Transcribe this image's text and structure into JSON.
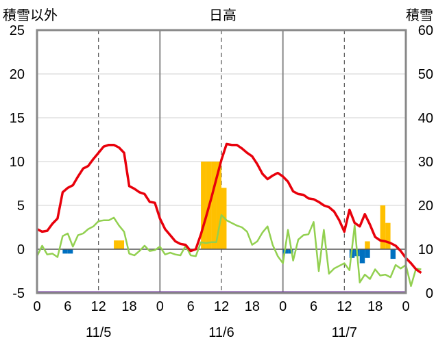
{
  "titles": {
    "left": "積雪以外",
    "center": "日高",
    "right": "積雪"
  },
  "chart_data": {
    "type": "line",
    "y_left": {
      "min": -5,
      "max": 25,
      "ticks": [
        -5,
        0,
        5,
        10,
        15,
        20,
        25
      ]
    },
    "y_right": {
      "min": 0,
      "max": 60,
      "ticks": [
        0,
        10,
        20,
        30,
        40,
        50,
        60
      ]
    },
    "x": {
      "min": 0,
      "max": 72,
      "tick_positions": [
        0,
        6,
        12,
        18,
        24,
        30,
        36,
        42,
        48,
        54,
        60,
        66,
        72
      ],
      "tick_labels": [
        "0",
        "6",
        "12",
        "18",
        "0",
        "6",
        "12",
        "18",
        "0",
        "6",
        "12",
        "18",
        "0"
      ],
      "day_dividers": [
        24,
        48
      ],
      "dashed_guides": [
        12,
        36,
        60
      ],
      "dates": [
        {
          "label": "11/5",
          "at": 12
        },
        {
          "label": "11/6",
          "at": 36
        },
        {
          "label": "11/7",
          "at": 60
        }
      ]
    },
    "temperature": {
      "color": "#e8000b",
      "points": [
        [
          0,
          2.3
        ],
        [
          1,
          2.0
        ],
        [
          2,
          2.1
        ],
        [
          3,
          2.9
        ],
        [
          4,
          3.5
        ],
        [
          5,
          6.5
        ],
        [
          6,
          7.0
        ],
        [
          7,
          7.3
        ],
        [
          8,
          8.3
        ],
        [
          9,
          9.2
        ],
        [
          10,
          9.5
        ],
        [
          11,
          10.3
        ],
        [
          12,
          11.0
        ],
        [
          13,
          11.7
        ],
        [
          14,
          11.9
        ],
        [
          15,
          11.9
        ],
        [
          16,
          11.6
        ],
        [
          17,
          11.0
        ],
        [
          18,
          7.2
        ],
        [
          19,
          6.9
        ],
        [
          20,
          6.5
        ],
        [
          21,
          6.3
        ],
        [
          22,
          5.4
        ],
        [
          23,
          5.3
        ],
        [
          24,
          3.5
        ],
        [
          25,
          2.3
        ],
        [
          26,
          1.6
        ],
        [
          27,
          0.9
        ],
        [
          28,
          0.6
        ],
        [
          29,
          0.5
        ],
        [
          30,
          -0.2
        ],
        [
          31,
          0.0
        ],
        [
          32,
          1.7
        ],
        [
          33,
          3.7
        ],
        [
          34,
          5.8
        ],
        [
          35,
          8.0
        ],
        [
          36,
          10.2
        ],
        [
          37,
          12.0
        ],
        [
          38,
          11.9
        ],
        [
          39,
          11.9
        ],
        [
          40,
          11.5
        ],
        [
          41,
          11.0
        ],
        [
          42,
          10.6
        ],
        [
          43,
          9.7
        ],
        [
          44,
          8.6
        ],
        [
          45,
          8.0
        ],
        [
          46,
          8.4
        ],
        [
          47,
          8.7
        ],
        [
          48,
          8.3
        ],
        [
          49,
          7.7
        ],
        [
          50,
          6.6
        ],
        [
          51,
          6.3
        ],
        [
          52,
          6.2
        ],
        [
          53,
          5.8
        ],
        [
          54,
          5.7
        ],
        [
          55,
          5.4
        ],
        [
          56,
          5.0
        ],
        [
          57,
          4.8
        ],
        [
          58,
          4.3
        ],
        [
          59,
          3.3
        ],
        [
          60,
          2.0
        ],
        [
          61,
          4.5
        ],
        [
          62,
          3.0
        ],
        [
          63,
          2.6
        ],
        [
          64,
          4.0
        ],
        [
          65,
          2.8
        ],
        [
          66,
          1.4
        ],
        [
          67,
          1.0
        ],
        [
          68,
          0.9
        ],
        [
          69,
          0.7
        ],
        [
          70,
          0.4
        ],
        [
          71,
          -0.2
        ],
        [
          72,
          -1.0
        ],
        [
          73,
          -1.6
        ],
        [
          74,
          -2.3
        ],
        [
          75,
          -2.7
        ]
      ]
    },
    "green_series": {
      "color": "#92d050",
      "points": [
        [
          0,
          -0.8
        ],
        [
          1,
          0.4
        ],
        [
          2,
          -0.6
        ],
        [
          3,
          -0.5
        ],
        [
          4,
          -0.9
        ],
        [
          5,
          1.5
        ],
        [
          6,
          1.8
        ],
        [
          7,
          0.3
        ],
        [
          8,
          1.6
        ],
        [
          9,
          1.8
        ],
        [
          10,
          2.3
        ],
        [
          11,
          2.6
        ],
        [
          12,
          3.2
        ],
        [
          13,
          3.3
        ],
        [
          14,
          3.3
        ],
        [
          15,
          3.6
        ],
        [
          16,
          2.7
        ],
        [
          17,
          2.0
        ],
        [
          18,
          -0.5
        ],
        [
          19,
          -0.7
        ],
        [
          20,
          -0.2
        ],
        [
          21,
          0.4
        ],
        [
          22,
          -0.2
        ],
        [
          23,
          -0.1
        ],
        [
          24,
          0.3
        ],
        [
          25,
          -0.6
        ],
        [
          26,
          -0.4
        ],
        [
          27,
          -0.6
        ],
        [
          28,
          -0.7
        ],
        [
          29,
          0.4
        ],
        [
          30,
          -0.7
        ],
        [
          31,
          -0.8
        ],
        [
          32,
          0.8
        ],
        [
          33,
          0.7
        ],
        [
          34,
          0.8
        ],
        [
          35,
          0.8
        ],
        [
          36,
          3.9
        ],
        [
          37,
          3.3
        ],
        [
          38,
          3.0
        ],
        [
          39,
          2.7
        ],
        [
          40,
          2.5
        ],
        [
          41,
          2.0
        ],
        [
          42,
          0.5
        ],
        [
          43,
          0.9
        ],
        [
          44,
          1.9
        ],
        [
          45,
          2.6
        ],
        [
          46,
          0.5
        ],
        [
          47,
          -0.8
        ],
        [
          48,
          -1.6
        ],
        [
          49,
          2.2
        ],
        [
          50,
          -1.3
        ],
        [
          51,
          1.1
        ],
        [
          52,
          1.6
        ],
        [
          53,
          1.7
        ],
        [
          54,
          3.1
        ],
        [
          55,
          -2.5
        ],
        [
          56,
          2.2
        ],
        [
          57,
          -2.8
        ],
        [
          58,
          -2.2
        ],
        [
          59,
          -1.9
        ],
        [
          60,
          -1.6
        ],
        [
          61,
          -2.4
        ],
        [
          62,
          2.7
        ],
        [
          63,
          -3.8
        ],
        [
          64,
          -2.9
        ],
        [
          65,
          -3.4
        ],
        [
          66,
          -2.3
        ],
        [
          67,
          -3.0
        ],
        [
          68,
          -2.9
        ],
        [
          69,
          -3.2
        ],
        [
          70,
          -1.8
        ],
        [
          71,
          -2.2
        ],
        [
          72,
          -1.8
        ],
        [
          73,
          -4.2
        ],
        [
          74,
          -2.2
        ],
        [
          75,
          -2.3
        ]
      ]
    },
    "orange_bars": {
      "color": "#ffc000",
      "width_hours": 1,
      "bars": [
        [
          15,
          1.0
        ],
        [
          16,
          1.0
        ],
        [
          32,
          10.0
        ],
        [
          33,
          10.0
        ],
        [
          34,
          10.0
        ],
        [
          35,
          10.0
        ],
        [
          36,
          7.0
        ],
        [
          64,
          0.9
        ],
        [
          67,
          5.0
        ],
        [
          68,
          3.0
        ]
      ]
    },
    "blue_bars": {
      "color": "#0070c0",
      "width_hours": 1,
      "bars": [
        [
          5,
          -0.5
        ],
        [
          6,
          -0.5
        ],
        [
          48,
          -0.5
        ],
        [
          49,
          -0.5
        ],
        [
          61,
          -1.0
        ],
        [
          62,
          -0.8
        ],
        [
          63,
          -1.6
        ],
        [
          64,
          -1.0
        ],
        [
          69,
          -1.1
        ]
      ]
    },
    "snow_depth": {
      "color": "#7030a0",
      "values_right_axis": 0
    }
  }
}
